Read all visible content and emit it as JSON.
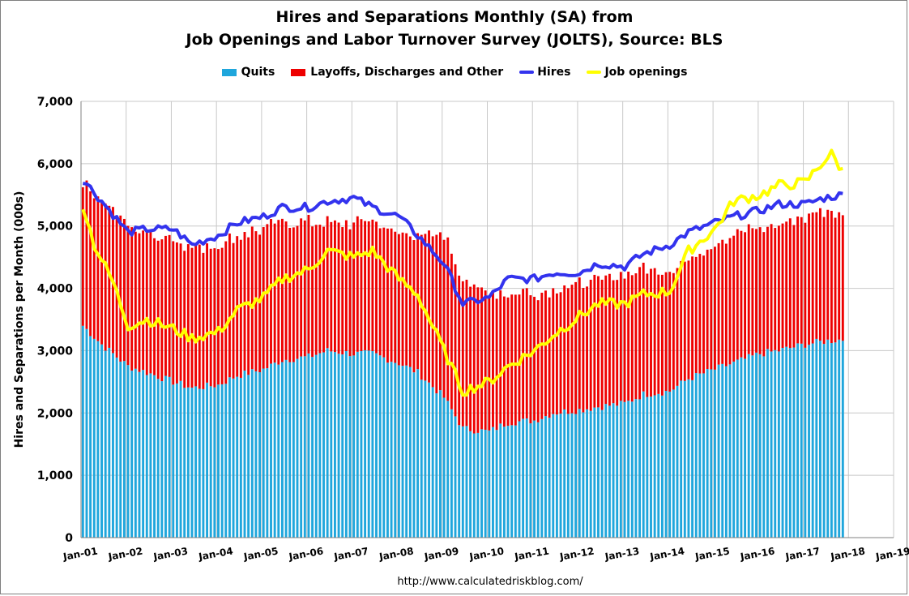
{
  "chart_data": {
    "type": "bar",
    "title": "Hires and Separations Monthly (SA) from",
    "subtitle": "Job Openings and Labor Turnover Survey (JOLTS), Source: BLS",
    "ylabel": "Hires and Separations per Month (000s)",
    "ylim": [
      0,
      7000
    ],
    "yticks": [
      "0",
      "1,000",
      "2,000",
      "3,000",
      "4,000",
      "5,000",
      "6,000",
      "7,000"
    ],
    "xticks": [
      "Jan-01",
      "Jan-02",
      "Jan-03",
      "Jan-04",
      "Jan-05",
      "Jan-06",
      "Jan-07",
      "Jan-08",
      "Jan-09",
      "Jan-10",
      "Jan-11",
      "Jan-12",
      "Jan-13",
      "Jan-14",
      "Jan-15",
      "Jan-16",
      "Jan-17",
      "Jan-18",
      "Jan-19"
    ],
    "grid": true,
    "legend": "top",
    "stacked": true,
    "period": "2001-01 to 2017-11, monthly",
    "series": [
      {
        "name": "Quits",
        "kind": "bar",
        "color": "#1fa6dc",
        "anchors": [
          [
            "2001-01",
            3400
          ],
          [
            "2001-06",
            3100
          ],
          [
            "2002-01",
            2750
          ],
          [
            "2002-06",
            2650
          ],
          [
            "2003-01",
            2500
          ],
          [
            "2003-06",
            2400
          ],
          [
            "2004-01",
            2450
          ],
          [
            "2004-06",
            2600
          ],
          [
            "2005-01",
            2700
          ],
          [
            "2005-06",
            2850
          ],
          [
            "2006-01",
            2900
          ],
          [
            "2006-06",
            3000
          ],
          [
            "2007-01",
            2950
          ],
          [
            "2007-06",
            2950
          ],
          [
            "2008-01",
            2800
          ],
          [
            "2008-06",
            2650
          ],
          [
            "2009-01",
            2250
          ],
          [
            "2009-06",
            1750
          ],
          [
            "2010-01",
            1700
          ],
          [
            "2010-06",
            1850
          ],
          [
            "2011-01",
            1880
          ],
          [
            "2011-06",
            2000
          ],
          [
            "2012-01",
            2050
          ],
          [
            "2012-06",
            2100
          ],
          [
            "2013-01",
            2150
          ],
          [
            "2013-06",
            2300
          ],
          [
            "2014-01",
            2350
          ],
          [
            "2014-06",
            2550
          ],
          [
            "2015-01",
            2700
          ],
          [
            "2015-06",
            2800
          ],
          [
            "2016-01",
            2950
          ],
          [
            "2016-06",
            3000
          ],
          [
            "2017-01",
            3100
          ],
          [
            "2017-06",
            3150
          ],
          [
            "2017-11",
            3180
          ]
        ]
      },
      {
        "name": "Layoffs, Discharges and Other",
        "kind": "bar",
        "color": "#ee0000",
        "anchors": [
          [
            "2001-01",
            2300
          ],
          [
            "2001-06",
            2350
          ],
          [
            "2002-01",
            2250
          ],
          [
            "2002-06",
            2250
          ],
          [
            "2003-01",
            2300
          ],
          [
            "2003-06",
            2250
          ],
          [
            "2004-01",
            2250
          ],
          [
            "2004-06",
            2250
          ],
          [
            "2005-01",
            2250
          ],
          [
            "2005-06",
            2250
          ],
          [
            "2006-01",
            2150
          ],
          [
            "2006-06",
            2050
          ],
          [
            "2007-01",
            2100
          ],
          [
            "2007-06",
            2100
          ],
          [
            "2008-01",
            2100
          ],
          [
            "2008-06",
            2200
          ],
          [
            "2009-01",
            2600
          ],
          [
            "2009-06",
            2400
          ],
          [
            "2010-01",
            2200
          ],
          [
            "2010-06",
            2100
          ],
          [
            "2011-01",
            2050
          ],
          [
            "2011-06",
            2000
          ],
          [
            "2012-01",
            2050
          ],
          [
            "2012-06",
            2050
          ],
          [
            "2013-01",
            2050
          ],
          [
            "2013-06",
            2050
          ],
          [
            "2014-01",
            1950
          ],
          [
            "2014-06",
            1900
          ],
          [
            "2015-01",
            2000
          ],
          [
            "2015-06",
            2050
          ],
          [
            "2016-01",
            2000
          ],
          [
            "2016-06",
            2000
          ],
          [
            "2017-01",
            2050
          ],
          [
            "2017-06",
            2100
          ],
          [
            "2017-11",
            2050
          ]
        ]
      },
      {
        "name": "Hires",
        "kind": "line",
        "color": "#3333ee",
        "anchors": [
          [
            "2001-01",
            5750
          ],
          [
            "2001-06",
            5400
          ],
          [
            "2002-01",
            4900
          ],
          [
            "2002-06",
            4950
          ],
          [
            "2003-01",
            4950
          ],
          [
            "2003-06",
            4700
          ],
          [
            "2004-01",
            4850
          ],
          [
            "2004-06",
            5050
          ],
          [
            "2005-01",
            5150
          ],
          [
            "2005-06",
            5300
          ],
          [
            "2006-01",
            5300
          ],
          [
            "2006-06",
            5400
          ],
          [
            "2007-01",
            5450
          ],
          [
            "2007-06",
            5300
          ],
          [
            "2008-01",
            5150
          ],
          [
            "2008-06",
            4850
          ],
          [
            "2009-01",
            4400
          ],
          [
            "2009-06",
            3750
          ],
          [
            "2010-01",
            3850
          ],
          [
            "2010-06",
            4150
          ],
          [
            "2011-01",
            4150
          ],
          [
            "2011-06",
            4250
          ],
          [
            "2012-01",
            4250
          ],
          [
            "2012-06",
            4400
          ],
          [
            "2013-01",
            4350
          ],
          [
            "2013-06",
            4550
          ],
          [
            "2014-01",
            4700
          ],
          [
            "2014-06",
            4900
          ],
          [
            "2015-01",
            5050
          ],
          [
            "2015-06",
            5150
          ],
          [
            "2016-01",
            5250
          ],
          [
            "2016-06",
            5350
          ],
          [
            "2017-01",
            5350
          ],
          [
            "2017-06",
            5450
          ],
          [
            "2017-11",
            5500
          ]
        ]
      },
      {
        "name": "Job openings",
        "kind": "line",
        "color": "#ffff00",
        "anchors": [
          [
            "2001-01",
            5350
          ],
          [
            "2001-04",
            4700
          ],
          [
            "2001-09",
            4100
          ],
          [
            "2002-01",
            3400
          ],
          [
            "2002-06",
            3500
          ],
          [
            "2003-01",
            3350
          ],
          [
            "2003-06",
            3200
          ],
          [
            "2004-01",
            3300
          ],
          [
            "2004-06",
            3650
          ],
          [
            "2005-01",
            3850
          ],
          [
            "2005-06",
            4150
          ],
          [
            "2006-01",
            4300
          ],
          [
            "2006-06",
            4600
          ],
          [
            "2007-01",
            4500
          ],
          [
            "2007-06",
            4600
          ],
          [
            "2008-01",
            4150
          ],
          [
            "2008-06",
            3900
          ],
          [
            "2009-01",
            3000
          ],
          [
            "2009-06",
            2350
          ],
          [
            "2010-01",
            2500
          ],
          [
            "2010-06",
            2750
          ],
          [
            "2011-01",
            3000
          ],
          [
            "2011-06",
            3250
          ],
          [
            "2012-01",
            3550
          ],
          [
            "2012-06",
            3750
          ],
          [
            "2013-01",
            3750
          ],
          [
            "2013-06",
            3900
          ],
          [
            "2014-01",
            3950
          ],
          [
            "2014-06",
            4600
          ],
          [
            "2015-01",
            4950
          ],
          [
            "2015-06",
            5400
          ],
          [
            "2016-01",
            5500
          ],
          [
            "2016-06",
            5650
          ],
          [
            "2017-01",
            5700
          ],
          [
            "2017-06",
            6050
          ],
          [
            "2017-08",
            6150
          ],
          [
            "2017-11",
            5880
          ]
        ]
      }
    ]
  },
  "source_url": "http://www.calculatedriskblog.com/"
}
